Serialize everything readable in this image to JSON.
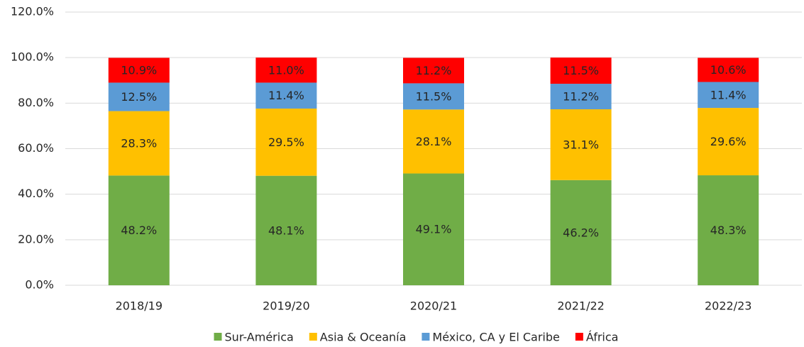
{
  "chart_data": {
    "type": "stacked_bar",
    "categories": [
      "2018/19",
      "2019/20",
      "2020/21",
      "2021/22",
      "2022/23"
    ],
    "series": [
      {
        "name": "Sur-América",
        "color": "#70ad47",
        "values": [
          48.2,
          48.1,
          49.1,
          46.2,
          48.3
        ],
        "value_labels": [
          "48.2%",
          "48.1%",
          "49.1%",
          "46.2%",
          "48.3%"
        ]
      },
      {
        "name": "Asia & Oceanía",
        "color": "#ffc000",
        "values": [
          28.3,
          29.5,
          28.1,
          31.1,
          29.6
        ],
        "value_labels": [
          "28.3%",
          "29.5%",
          "28.1%",
          "31.1%",
          "29.6%"
        ]
      },
      {
        "name": "México, CA y El Caribe",
        "color": "#5b9bd5",
        "values": [
          12.5,
          11.4,
          11.5,
          11.2,
          11.4
        ],
        "value_labels": [
          "12.5%",
          "11.4%",
          "11.5%",
          "11.2%",
          "11.4%"
        ]
      },
      {
        "name": "África",
        "color": "#ff0000",
        "values": [
          10.9,
          11.0,
          11.2,
          11.5,
          10.6
        ],
        "value_labels": [
          "10.9%",
          "11.0%",
          "11.2%",
          "11.5%",
          "10.6%"
        ]
      }
    ],
    "ylim": [
      0,
      120
    ],
    "yticks": [
      {
        "value": 0,
        "label": "0.0%"
      },
      {
        "value": 20,
        "label": "20.0%"
      },
      {
        "value": 40,
        "label": "40.0%"
      },
      {
        "value": 60,
        "label": "60.0%"
      },
      {
        "value": 80,
        "label": "80.0%"
      },
      {
        "value": 100,
        "label": "100.0%"
      },
      {
        "value": 120,
        "label": "120.0%"
      }
    ],
    "grid": true,
    "legend": "bottom"
  }
}
